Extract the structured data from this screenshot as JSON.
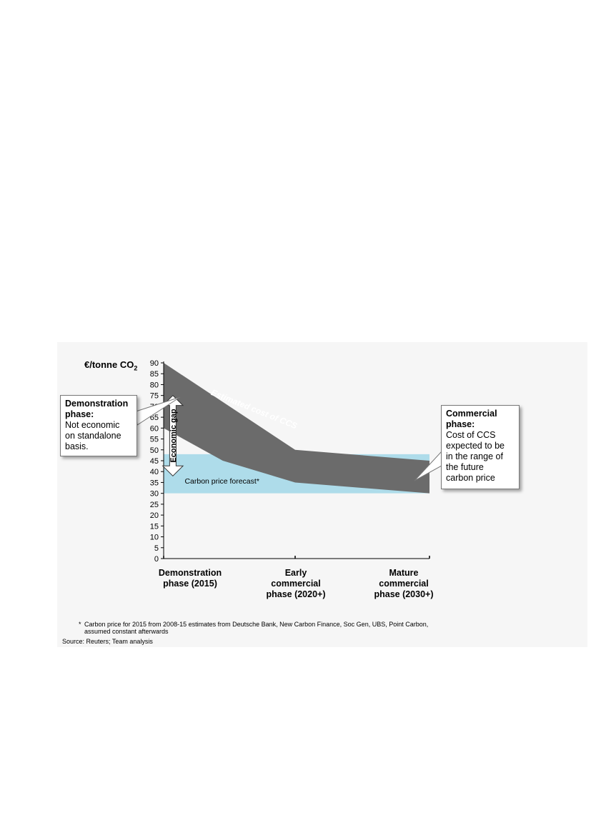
{
  "chart_data": {
    "type": "area",
    "y_unit_label": "€/tonne CO",
    "y_unit_subscript": "2",
    "ylim": [
      0,
      90
    ],
    "y_ticks": [
      0,
      5,
      10,
      15,
      20,
      25,
      30,
      35,
      40,
      45,
      50,
      55,
      60,
      65,
      70,
      75,
      80,
      85,
      90
    ],
    "x_positions": [
      0,
      1,
      2
    ],
    "categories": [
      [
        "Demonstration",
        "phase (2015)"
      ],
      [
        "Early",
        "commercial",
        "phase (2020+)"
      ],
      [
        "Mature",
        "commercial",
        "phase (2030+)"
      ]
    ],
    "series": [
      {
        "name": "Estimated cost of CCS",
        "color": "#6b6b6b",
        "upper": [
          [
            0,
            90
          ],
          [
            1,
            50
          ],
          [
            2,
            45
          ]
        ],
        "lower": [
          [
            0,
            60
          ],
          [
            0.45,
            45
          ],
          [
            1,
            35
          ],
          [
            2,
            30
          ]
        ]
      },
      {
        "name": "Carbon price forecast*",
        "color": "#aedcea",
        "upper": [
          [
            0,
            48
          ],
          [
            2,
            48
          ]
        ],
        "lower": [
          [
            0,
            30
          ],
          [
            2,
            30
          ]
        ]
      }
    ],
    "economic_gap": {
      "label": "Economic gap",
      "from": 75,
      "to": 38,
      "x": 0.07
    },
    "callouts": {
      "demonstration": {
        "title": [
          "Demonstration",
          "phase:"
        ],
        "lines": [
          "Not economic",
          "on standalone",
          "basis."
        ]
      },
      "commercial": {
        "title": [
          "Commercial",
          "phase:"
        ],
        "lines": [
          "Cost of CCS",
          "expected to be",
          "in the range of",
          "the future",
          "carbon price"
        ]
      }
    }
  },
  "footnote": {
    "marker": "*",
    "lines": [
      "Carbon price for 2015 from 2008-15 estimates from Deutsche Bank, New Carbon Finance, Soc Gen, UBS, Point Carbon,",
      "assumed constant afterwards"
    ]
  },
  "source": "Source:  Reuters; Team analysis"
}
